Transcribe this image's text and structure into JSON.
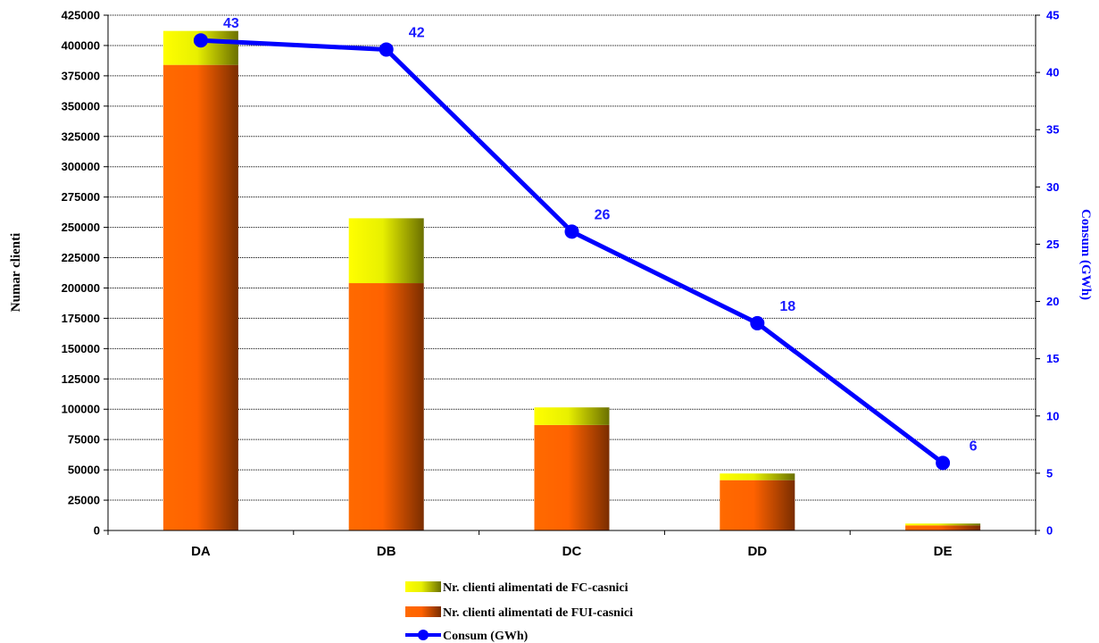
{
  "chart_data": {
    "type": "bar",
    "stacked": true,
    "categories": [
      "DA",
      "DB",
      "DC",
      "DD",
      "DE"
    ],
    "series": [
      {
        "name": "Nr. clienti alimentati de FUI-casnici",
        "type": "bar",
        "axis": "left",
        "values": [
          384000,
          204000,
          87000,
          41500,
          4200
        ]
      },
      {
        "name": "Nr. clienti alimentati de FC-casnici",
        "type": "bar",
        "axis": "left",
        "values": [
          28000,
          53500,
          14500,
          5500,
          1500
        ]
      },
      {
        "name": "Consum (GWh)",
        "type": "line",
        "axis": "right",
        "values": [
          42.8,
          42.0,
          26.1,
          18.1,
          5.9
        ],
        "labels": [
          "43",
          "42",
          "26",
          "18",
          "6"
        ]
      }
    ],
    "ylabel": "Numar clienti",
    "y2label": "Consum (GWh)",
    "ylim": [
      0,
      425000
    ],
    "y2lim": [
      0,
      45
    ],
    "yticks": [
      "0",
      "25000",
      "50000",
      "75000",
      "100000",
      "125000",
      "150000",
      "175000",
      "200000",
      "225000",
      "250000",
      "275000",
      "300000",
      "325000",
      "350000",
      "375000",
      "400000",
      "425000"
    ],
    "y2ticks": [
      "0",
      "5",
      "10",
      "15",
      "20",
      "25",
      "30",
      "35",
      "40",
      "45"
    ],
    "grid": true,
    "legend_position": "bottom",
    "colors": {
      "fui_light": "#ff6a00",
      "fui_dark": "#7a2d00",
      "fc_light": "#ffff00",
      "fc_dark": "#6b7000",
      "line": "#0000ff",
      "label": "#1a1aff"
    }
  }
}
